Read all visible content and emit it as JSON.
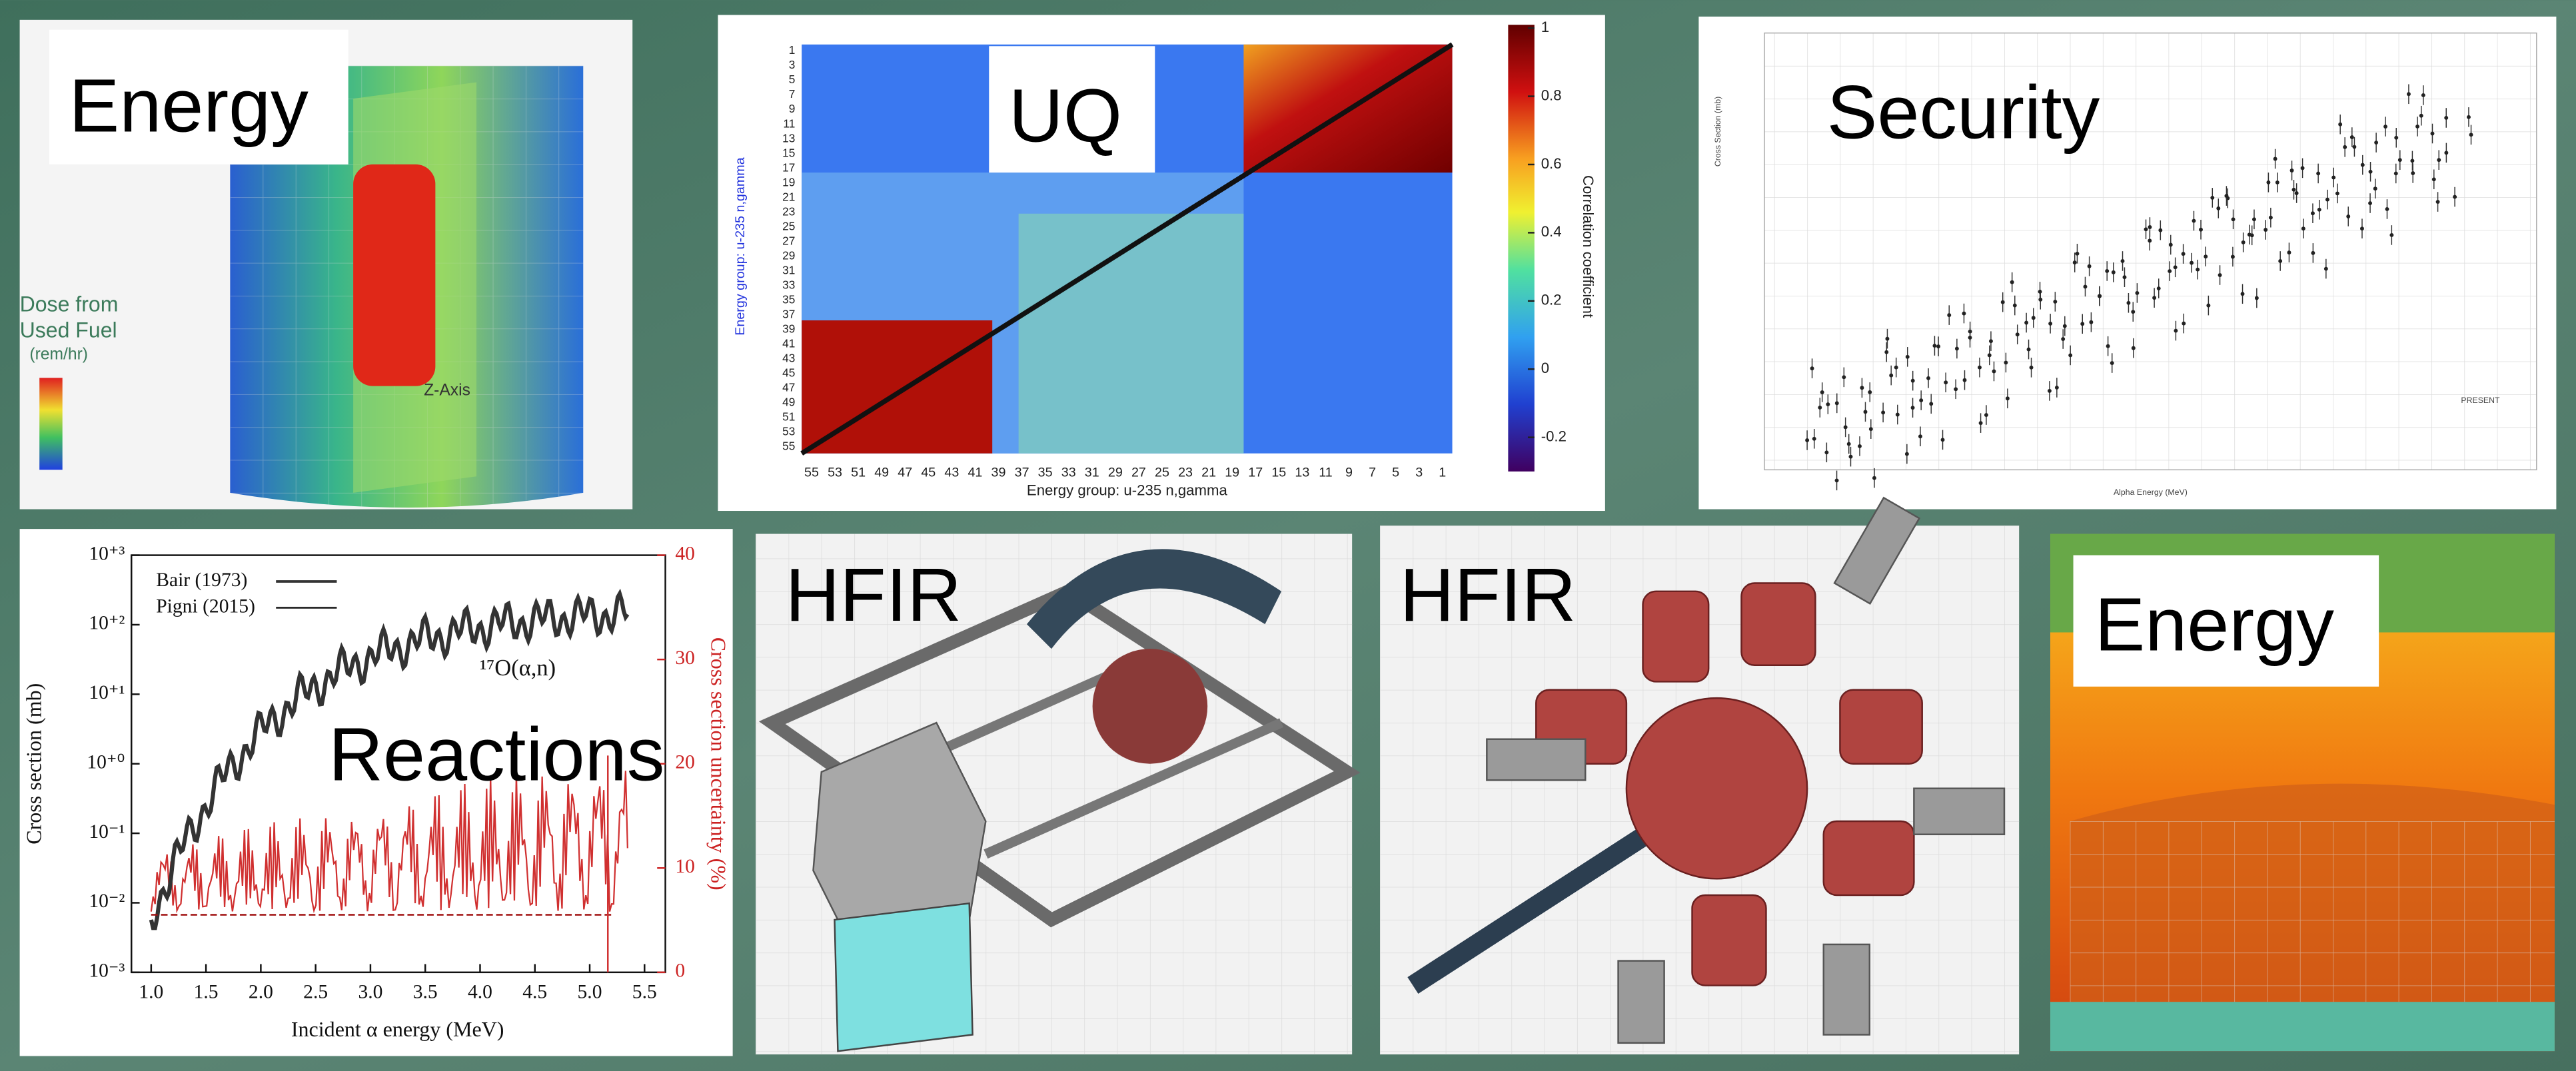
{
  "panels": [
    {
      "label": "Energy",
      "legend_title": [
        "Dose from",
        "Used Fuel",
        "(rem/hr)"
      ],
      "axis_label": "Z-Axis"
    },
    {
      "label": "UQ",
      "y_axis_label": "Energy group: u-235 n,gamma",
      "x_axis_label": "Energy group: u-235 n,gamma",
      "y_ticks": [
        1,
        3,
        5,
        7,
        9,
        11,
        13,
        15,
        17,
        19,
        21,
        23,
        25,
        27,
        29,
        31,
        33,
        35,
        37,
        39,
        41,
        43,
        45,
        47,
        49,
        51,
        53,
        55
      ],
      "x_ticks": [
        55,
        53,
        51,
        49,
        47,
        45,
        43,
        41,
        39,
        37,
        35,
        33,
        31,
        29,
        27,
        25,
        23,
        21,
        19,
        17,
        15,
        13,
        11,
        9,
        7,
        5,
        3,
        1
      ],
      "colorbar_label": "Correlation coefficient",
      "colorbar_lim": [
        -0.3,
        1
      ],
      "colorbar_ticks": [
        1,
        0.8,
        0.6,
        0.4,
        0.2,
        0,
        -0.2
      ]
    },
    {
      "label": "Security",
      "x_axis_label": "Alpha Energy (MeV)",
      "y_axis_label": "Cross Section (mb)",
      "legend": "PRESENT"
    },
    {
      "label": "Reactions",
      "legend": [
        "Bair (1973)",
        "Pigni (2015)"
      ],
      "annotation": "¹⁷O(α,n)",
      "x_axis_label": "Incident α energy (MeV)",
      "y_axis_label": "Cross section (mb)",
      "y2_axis_label": "Cross section uncertainty (%)",
      "xlim": [
        0.82,
        5.69
      ],
      "xticks": [
        {
          "value": 1,
          "label": "1.0"
        },
        {
          "value": 1.5,
          "label": "1.5"
        },
        {
          "value": 2,
          "label": "2.0"
        },
        {
          "value": 2.5,
          "label": "2.5"
        },
        {
          "value": 3,
          "label": "3.0"
        },
        {
          "value": 3.5,
          "label": "3.5"
        },
        {
          "value": 4,
          "label": "4.0"
        },
        {
          "value": 4.5,
          "label": "4.5"
        },
        {
          "value": 5,
          "label": "5.0"
        },
        {
          "value": 5.5,
          "label": "5.5"
        }
      ],
      "ylim": [
        -3,
        3
      ],
      "yticks": [
        {
          "value": -3,
          "label": "10⁻³"
        },
        {
          "value": -2,
          "label": "10⁻²"
        },
        {
          "value": -1,
          "label": "10⁻¹"
        },
        {
          "value": 0,
          "label": "10⁺⁰"
        },
        {
          "value": 1,
          "label": "10⁺¹"
        },
        {
          "value": 2,
          "label": "10⁺²"
        },
        {
          "value": 3,
          "label": "10⁺³"
        }
      ],
      "y2lim": [
        0,
        40
      ],
      "y2ticks": [
        0,
        10,
        20,
        30,
        40
      ]
    },
    {
      "label": "HFIR"
    },
    {
      "label": "HFIR"
    },
    {
      "label": "Energy"
    }
  ]
}
